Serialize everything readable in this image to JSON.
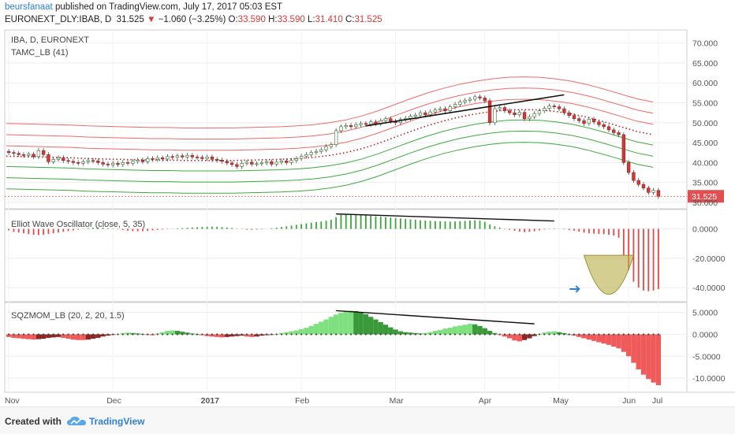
{
  "header": {
    "author": "beursfanaat",
    "published_text": "published on TradingView.com, July 17, 2017 05:03 EST",
    "symbol": "EURONEXT_DLY:IBAB, D",
    "price": "31.525",
    "change_arrow": "▼",
    "change": "−1.060 (−3.25%)",
    "open_label": "O:",
    "open": "33.590",
    "high_label": "H:",
    "high": "33.590",
    "low_label": "L:",
    "low": "31.410",
    "close_label": "C:",
    "close": "31.525"
  },
  "footer": {
    "created_with": "Created with",
    "brand": "TradingView",
    "logo_icon": "tradingview-cloud-icon"
  },
  "colors": {
    "up": "#2e8b2e",
    "down": "#d23a3a",
    "band_red": "#ee6a6a",
    "band_green": "#3fa83f",
    "dotted": "#b32222",
    "ewo_up": "#3ca43c",
    "ewo_down": "#e34848",
    "sqz_bright_green": "#7fe07f",
    "sqz_dark_green": "#3a9a3a",
    "sqz_red": "#ef5b5b",
    "price_tag": "#e05050",
    "cup_fill": "#b8ae48",
    "arrow": "#2f7fd6"
  },
  "chart_data": [
    {
      "type": "candlestick",
      "legend": [
        "IBA, D, EURONEXT",
        "TAMC_LB (41)"
      ],
      "x_ticks": [
        "Nov",
        "Dec",
        "2017",
        "Feb",
        "Mar",
        "Apr",
        "May",
        "Jun",
        "Jul"
      ],
      "y_ticks": [
        "70.000",
        "65.000",
        "60.000",
        "55.000",
        "50.000",
        "45.000",
        "40.000",
        "35.000",
        "30.000"
      ],
      "ylim": [
        29,
        72.5
      ],
      "last_price_tag": "31.525",
      "close": [
        42.5,
        42.3,
        42.0,
        41.8,
        42.1,
        41.5,
        43.0,
        42.0,
        40.2,
        40.8,
        41.2,
        40.5,
        40.3,
        40.0,
        39.8,
        40.2,
        40.5,
        40.4,
        40.0,
        39.6,
        39.4,
        39.8,
        39.5,
        40.0,
        39.8,
        40.3,
        40.6,
        40.2,
        41.0,
        40.8,
        41.2,
        40.9,
        41.5,
        41.3,
        41.7,
        41.4,
        41.8,
        41.4,
        41.3,
        41.0,
        41.4,
        40.8,
        40.6,
        40.3,
        39.9,
        39.5,
        39.0,
        39.8,
        40.1,
        39.6,
        39.7,
        39.9,
        40.2,
        39.6,
        40.1,
        40.4,
        40.0,
        40.5,
        41.0,
        41.6,
        42.0,
        42.5,
        42.8,
        43.2,
        44.0,
        44.5,
        48.0,
        49.0,
        49.3,
        49.0,
        49.5,
        49.8,
        49.6,
        50.2,
        49.8,
        50.5,
        51.0,
        50.4,
        50.0,
        50.8,
        51.1,
        51.6,
        51.9,
        52.5,
        52.0,
        52.7,
        53.2,
        53.5,
        53.0,
        54.0,
        54.6,
        55.2,
        55.6,
        55.9,
        56.5,
        56.2,
        55.5,
        50.0,
        53.5,
        53.8,
        53.0,
        52.5,
        52.0,
        52.6,
        51.0,
        51.5,
        52.3,
        53.0,
        53.6,
        54.2,
        54.0,
        53.5,
        52.5,
        51.8,
        51.0,
        50.5,
        49.8,
        50.9,
        50.2,
        49.5,
        49.0,
        48.2,
        47.5,
        47.0,
        40.0,
        37.5,
        35.5,
        34.5,
        33.6,
        32.5,
        33.0,
        31.5
      ],
      "bands_note": "three red bands above and three green bands below a dotted center line",
      "band_center": [
        41.6,
        41.5,
        41.4,
        41.3,
        41.2,
        41.0,
        40.9,
        40.8,
        40.7,
        40.6,
        40.6,
        40.5,
        40.5,
        40.5,
        40.5,
        40.6,
        40.7,
        40.8,
        41.0,
        41.3,
        41.8,
        42.5,
        43.5,
        44.8,
        46.3,
        47.8,
        49.2,
        50.4,
        51.4,
        52.2,
        52.8,
        53.2,
        53.3,
        53.2,
        52.8,
        52.2,
        51.3,
        50.2,
        49.0,
        47.8,
        47.0
      ],
      "band_offsets": [
        8.2,
        5.4,
        2.6,
        -2.6,
        -5.4,
        -8.2
      ],
      "annotation_trendline": {
        "from": [
          72,
          49.2
        ],
        "to": [
          112,
          57.0
        ]
      }
    },
    {
      "type": "bar",
      "name": "Elliot Wave Oscillator (close, 5, 35)",
      "y_ticks": [
        "0.0000",
        "-20.0000",
        "-40.0000"
      ],
      "ylim": [
        -48,
        10
      ],
      "values": [
        -1,
        -2,
        -2.5,
        -3,
        -3.5,
        -4,
        -4.2,
        -4,
        -3.5,
        -3,
        -2.5,
        -2,
        -1.5,
        -1,
        -0.5,
        0.2,
        0.5,
        0.8,
        1.0,
        0.8,
        0.5,
        0.2,
        -0.3,
        -0.8,
        -1.2,
        -1.5,
        -1.6,
        -1.5,
        -1.3,
        -1.0,
        -0.7,
        -0.4,
        -0.2,
        0.1,
        0.4,
        0.6,
        0.8,
        1.0,
        1.2,
        1.4,
        1.5,
        1.6,
        1.5,
        1.3,
        1.0,
        0.6,
        0.2,
        -0.2,
        -0.5,
        -0.6,
        -0.5,
        -0.3,
        0.0,
        0.4,
        0.8,
        1.3,
        1.8,
        2.3,
        2.8,
        3.3,
        3.8,
        4.2,
        4.6,
        5.0,
        5.6,
        6.2,
        8.0,
        9.5,
        10.2,
        10.0,
        9.8,
        9.5,
        9.2,
        8.9,
        8.6,
        8.3,
        8.0,
        7.7,
        7.4,
        7.1,
        6.8,
        6.5,
        6.2,
        5.9,
        5.7,
        5.5,
        5.3,
        5.2,
        5.1,
        5.0,
        5.1,
        5.3,
        5.5,
        5.7,
        5.9,
        5.6,
        4.8,
        3.0,
        1.8,
        1.0,
        0.2,
        -0.6,
        -1.3,
        -1.8,
        -2.2,
        -2.0,
        -1.6,
        -1.0,
        -0.4,
        0.2,
        0.3,
        0.1,
        -0.3,
        -0.8,
        -1.3,
        -1.8,
        -2.5,
        -3.0,
        -3.2,
        -3.4,
        -3.6,
        -4.0,
        -4.6,
        -6.0,
        -18.0,
        -28.0,
        -36.0,
        -40.0,
        -42.0,
        -42.5,
        -42.0,
        -41.0
      ],
      "annotation_trendline": {
        "from": [
          66,
          10.2
        ],
        "to": [
          110,
          5.4
        ]
      },
      "cup_annotation": {
        "x_from": 116,
        "x_to": 126,
        "top": -18,
        "bottom": -46
      },
      "arrow_at": {
        "x": 115,
        "y": -41
      }
    },
    {
      "type": "bar",
      "name": "SQZMOM_LB (20, 2, 20, 1.5)",
      "y_ticks": [
        "5.0000",
        "0.0000",
        "-5.0000",
        "-10.0000"
      ],
      "ylim": [
        -12.5,
        6.2
      ],
      "values": [
        -0.6,
        -0.8,
        -0.9,
        -1.0,
        -1.1,
        -1.2,
        -1.1,
        -1.0,
        -0.8,
        -0.7,
        -0.6,
        -0.8,
        -1.0,
        -1.2,
        -1.3,
        -1.3,
        -1.2,
        -1.0,
        -0.8,
        -0.5,
        -0.3,
        -0.1,
        0.1,
        0.3,
        0.4,
        0.3,
        0.2,
        0.1,
        -0.1,
        -0.2,
        0.2,
        0.5,
        0.8,
        0.9,
        0.8,
        0.6,
        0.4,
        0.2,
        0.0,
        -0.2,
        -0.4,
        -0.5,
        -0.6,
        -0.7,
        -0.6,
        -0.5,
        -0.4,
        -0.3,
        -0.5,
        -0.6,
        -0.5,
        -0.3,
        -0.2,
        -0.1,
        0.1,
        0.3,
        0.5,
        0.7,
        0.9,
        1.2,
        1.5,
        1.9,
        2.4,
        2.9,
        3.4,
        4.0,
        4.5,
        4.9,
        5.2,
        5.4,
        5.3,
        5.0,
        4.6,
        4.0,
        3.4,
        2.8,
        2.2,
        1.6,
        1.1,
        0.7,
        0.5,
        0.4,
        0.3,
        0.2,
        0.3,
        0.5,
        0.8,
        1.0,
        1.3,
        1.5,
        1.8,
        2.0,
        2.2,
        2.4,
        2.3,
        1.9,
        1.4,
        0.8,
        0.3,
        -0.1,
        -0.5,
        -0.9,
        -1.4,
        -1.6,
        -1.3,
        -0.9,
        -0.4,
        0.1,
        0.4,
        0.6,
        0.7,
        0.5,
        0.3,
        0.0,
        -0.3,
        -0.6,
        -0.9,
        -1.2,
        -1.5,
        -1.8,
        -2.1,
        -2.4,
        -2.8,
        -3.2,
        -4.0,
        -5.0,
        -6.5,
        -8.0,
        -9.2,
        -10.2,
        -11.0,
        -11.6
      ],
      "annotation_trendline": {
        "from": [
          66,
          5.4
        ],
        "to": [
          106,
          2.4
        ]
      }
    }
  ]
}
